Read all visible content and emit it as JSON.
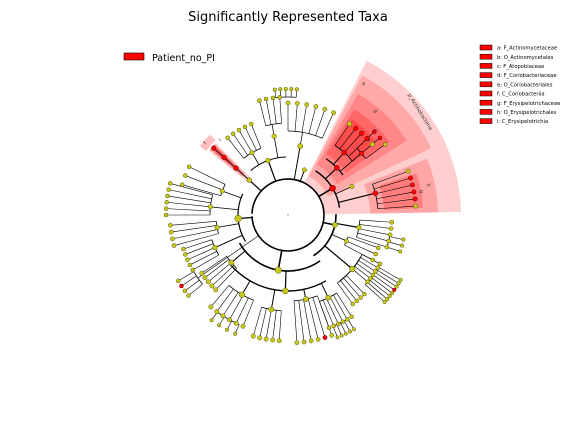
{
  "title": "Significantly Represented Taxa",
  "group_legend": {
    "label": "Patient_no_PI",
    "color": "#ff0000"
  },
  "taxa_legend": [
    "a: F_Actinomycetaceae",
    "b: O_Actinomycetales",
    "c: F_Atopobiaceae",
    "d: F_Coriobacteriaceae",
    "e: O_Coriobacteriales",
    "f: C_Coriobacteriia",
    "g: F_Erysipelotrichaceae",
    "h: O_Erysipelotrichales",
    "i: C_Erysipelotrichia"
  ],
  "clade_labels": {
    "a": "a",
    "b": "b",
    "c": "c",
    "d": "d",
    "e": "e",
    "f": "f",
    "g": "g",
    "h": "h",
    "i": "i",
    "actino": "p_Actinobacteria"
  },
  "colors": {
    "node_fill": "#c8c81e",
    "node_stroke": "#555500",
    "highlight": "#ff0000",
    "highlight_shade": "#ff8080",
    "branch": "#000000"
  }
}
